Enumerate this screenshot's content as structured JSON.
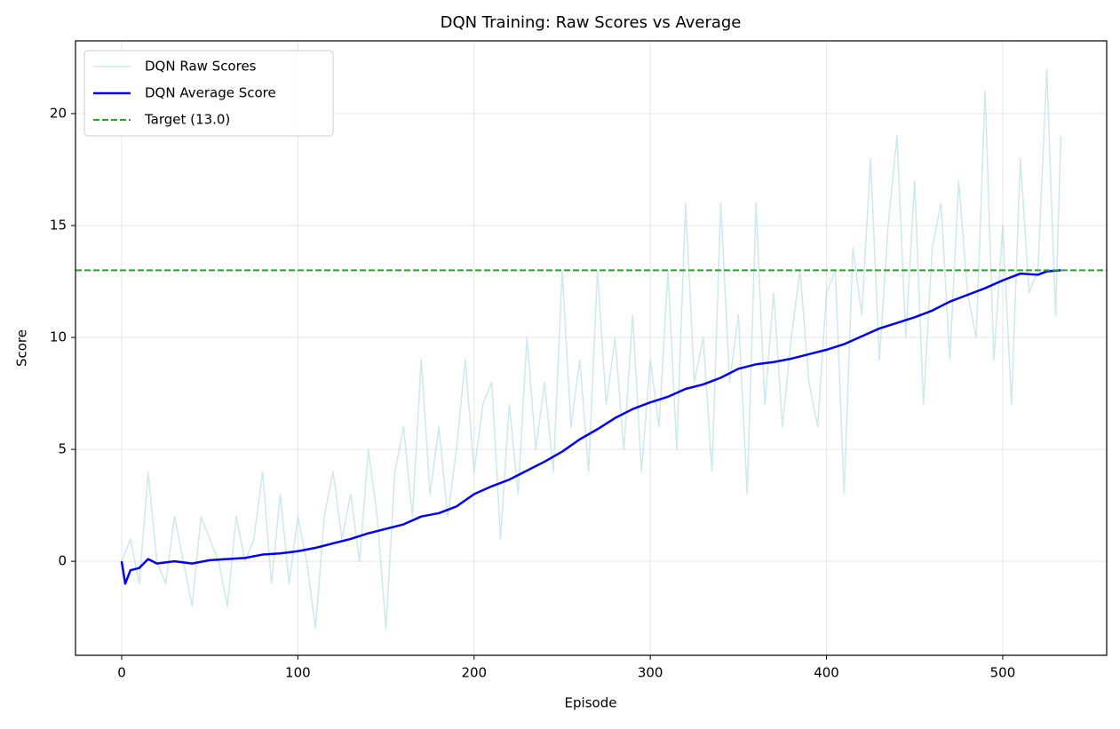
{
  "chart_data": {
    "type": "line",
    "title": "DQN Training: Raw Scores vs Average",
    "x_label": "Episode",
    "y_label": "Score",
    "xlim": [
      -26.2,
      559
    ],
    "ylim": [
      -4.2,
      23.25
    ],
    "xticks": [
      0,
      100,
      200,
      300,
      400,
      500
    ],
    "yticks": [
      0,
      5,
      10,
      15,
      20
    ],
    "grid": true,
    "legend": "upper left",
    "series": [
      {
        "name": "DQN Raw Scores",
        "color": "#add8e6",
        "width": 1.5,
        "opacity": 0.6,
        "x": [
          0,
          5,
          10,
          15,
          20,
          25,
          30,
          35,
          40,
          45,
          50,
          55,
          60,
          65,
          70,
          75,
          80,
          85,
          90,
          95,
          100,
          105,
          110,
          115,
          120,
          125,
          130,
          135,
          140,
          145,
          150,
          155,
          160,
          165,
          170,
          175,
          180,
          185,
          190,
          195,
          200,
          205,
          210,
          215,
          220,
          225,
          230,
          235,
          240,
          245,
          250,
          255,
          260,
          265,
          270,
          275,
          280,
          285,
          290,
          295,
          300,
          305,
          310,
          315,
          320,
          325,
          330,
          335,
          340,
          345,
          350,
          355,
          360,
          365,
          370,
          375,
          380,
          385,
          390,
          395,
          400,
          405,
          410,
          415,
          420,
          425,
          430,
          435,
          440,
          445,
          450,
          455,
          460,
          465,
          470,
          475,
          480,
          485,
          490,
          495,
          500,
          505,
          510,
          515,
          520,
          525,
          530,
          533
        ],
        "values": [
          0,
          1,
          -1,
          4,
          0,
          -1,
          2,
          0,
          -2,
          2,
          1,
          0,
          -2,
          2,
          0,
          1,
          4,
          -1,
          3,
          -1,
          2,
          0,
          -3,
          2,
          4,
          1,
          3,
          0,
          5,
          2,
          -3,
          4,
          6,
          2,
          9,
          3,
          6,
          2,
          5,
          9,
          4,
          7,
          8,
          1,
          7,
          3,
          10,
          5,
          8,
          4,
          13,
          6,
          9,
          4,
          13,
          7,
          10,
          5,
          11,
          4,
          9,
          6,
          13,
          5,
          16,
          8,
          10,
          4,
          16,
          8,
          11,
          3,
          16,
          7,
          12,
          6,
          10,
          13,
          8,
          6,
          12,
          13,
          3,
          14,
          11,
          18,
          9,
          15,
          19,
          10,
          17,
          7,
          14,
          16,
          9,
          17,
          12,
          10,
          21,
          9,
          15,
          7,
          18,
          12,
          13,
          22,
          11,
          19
        ]
      },
      {
        "name": "DQN Average Score",
        "color": "#0000ff",
        "width": 2.5,
        "opacity": 1,
        "x": [
          0,
          2,
          5,
          10,
          15,
          20,
          30,
          40,
          50,
          60,
          70,
          80,
          90,
          100,
          110,
          120,
          130,
          140,
          150,
          160,
          170,
          180,
          190,
          200,
          210,
          220,
          230,
          240,
          250,
          260,
          270,
          280,
          290,
          300,
          310,
          320,
          330,
          340,
          350,
          360,
          370,
          380,
          390,
          400,
          410,
          420,
          430,
          440,
          450,
          460,
          470,
          480,
          490,
          500,
          510,
          520,
          525,
          533
        ],
        "values": [
          0,
          -1,
          -0.4,
          -0.3,
          0.1,
          -0.1,
          0,
          -0.1,
          0.05,
          0.1,
          0.15,
          0.3,
          0.35,
          0.45,
          0.6,
          0.8,
          1.0,
          1.25,
          1.45,
          1.65,
          2.0,
          2.15,
          2.45,
          3.0,
          3.35,
          3.65,
          4.05,
          4.45,
          4.9,
          5.45,
          5.9,
          6.4,
          6.8,
          7.1,
          7.35,
          7.7,
          7.9,
          8.2,
          8.6,
          8.8,
          8.9,
          9.05,
          9.25,
          9.45,
          9.7,
          10.05,
          10.4,
          10.65,
          10.9,
          11.2,
          11.6,
          11.9,
          12.2,
          12.55,
          12.85,
          12.8,
          12.95,
          13.0
        ]
      }
    ],
    "target": {
      "name": "Target (13.0)",
      "value": 13,
      "color": "#2ca02c"
    }
  }
}
